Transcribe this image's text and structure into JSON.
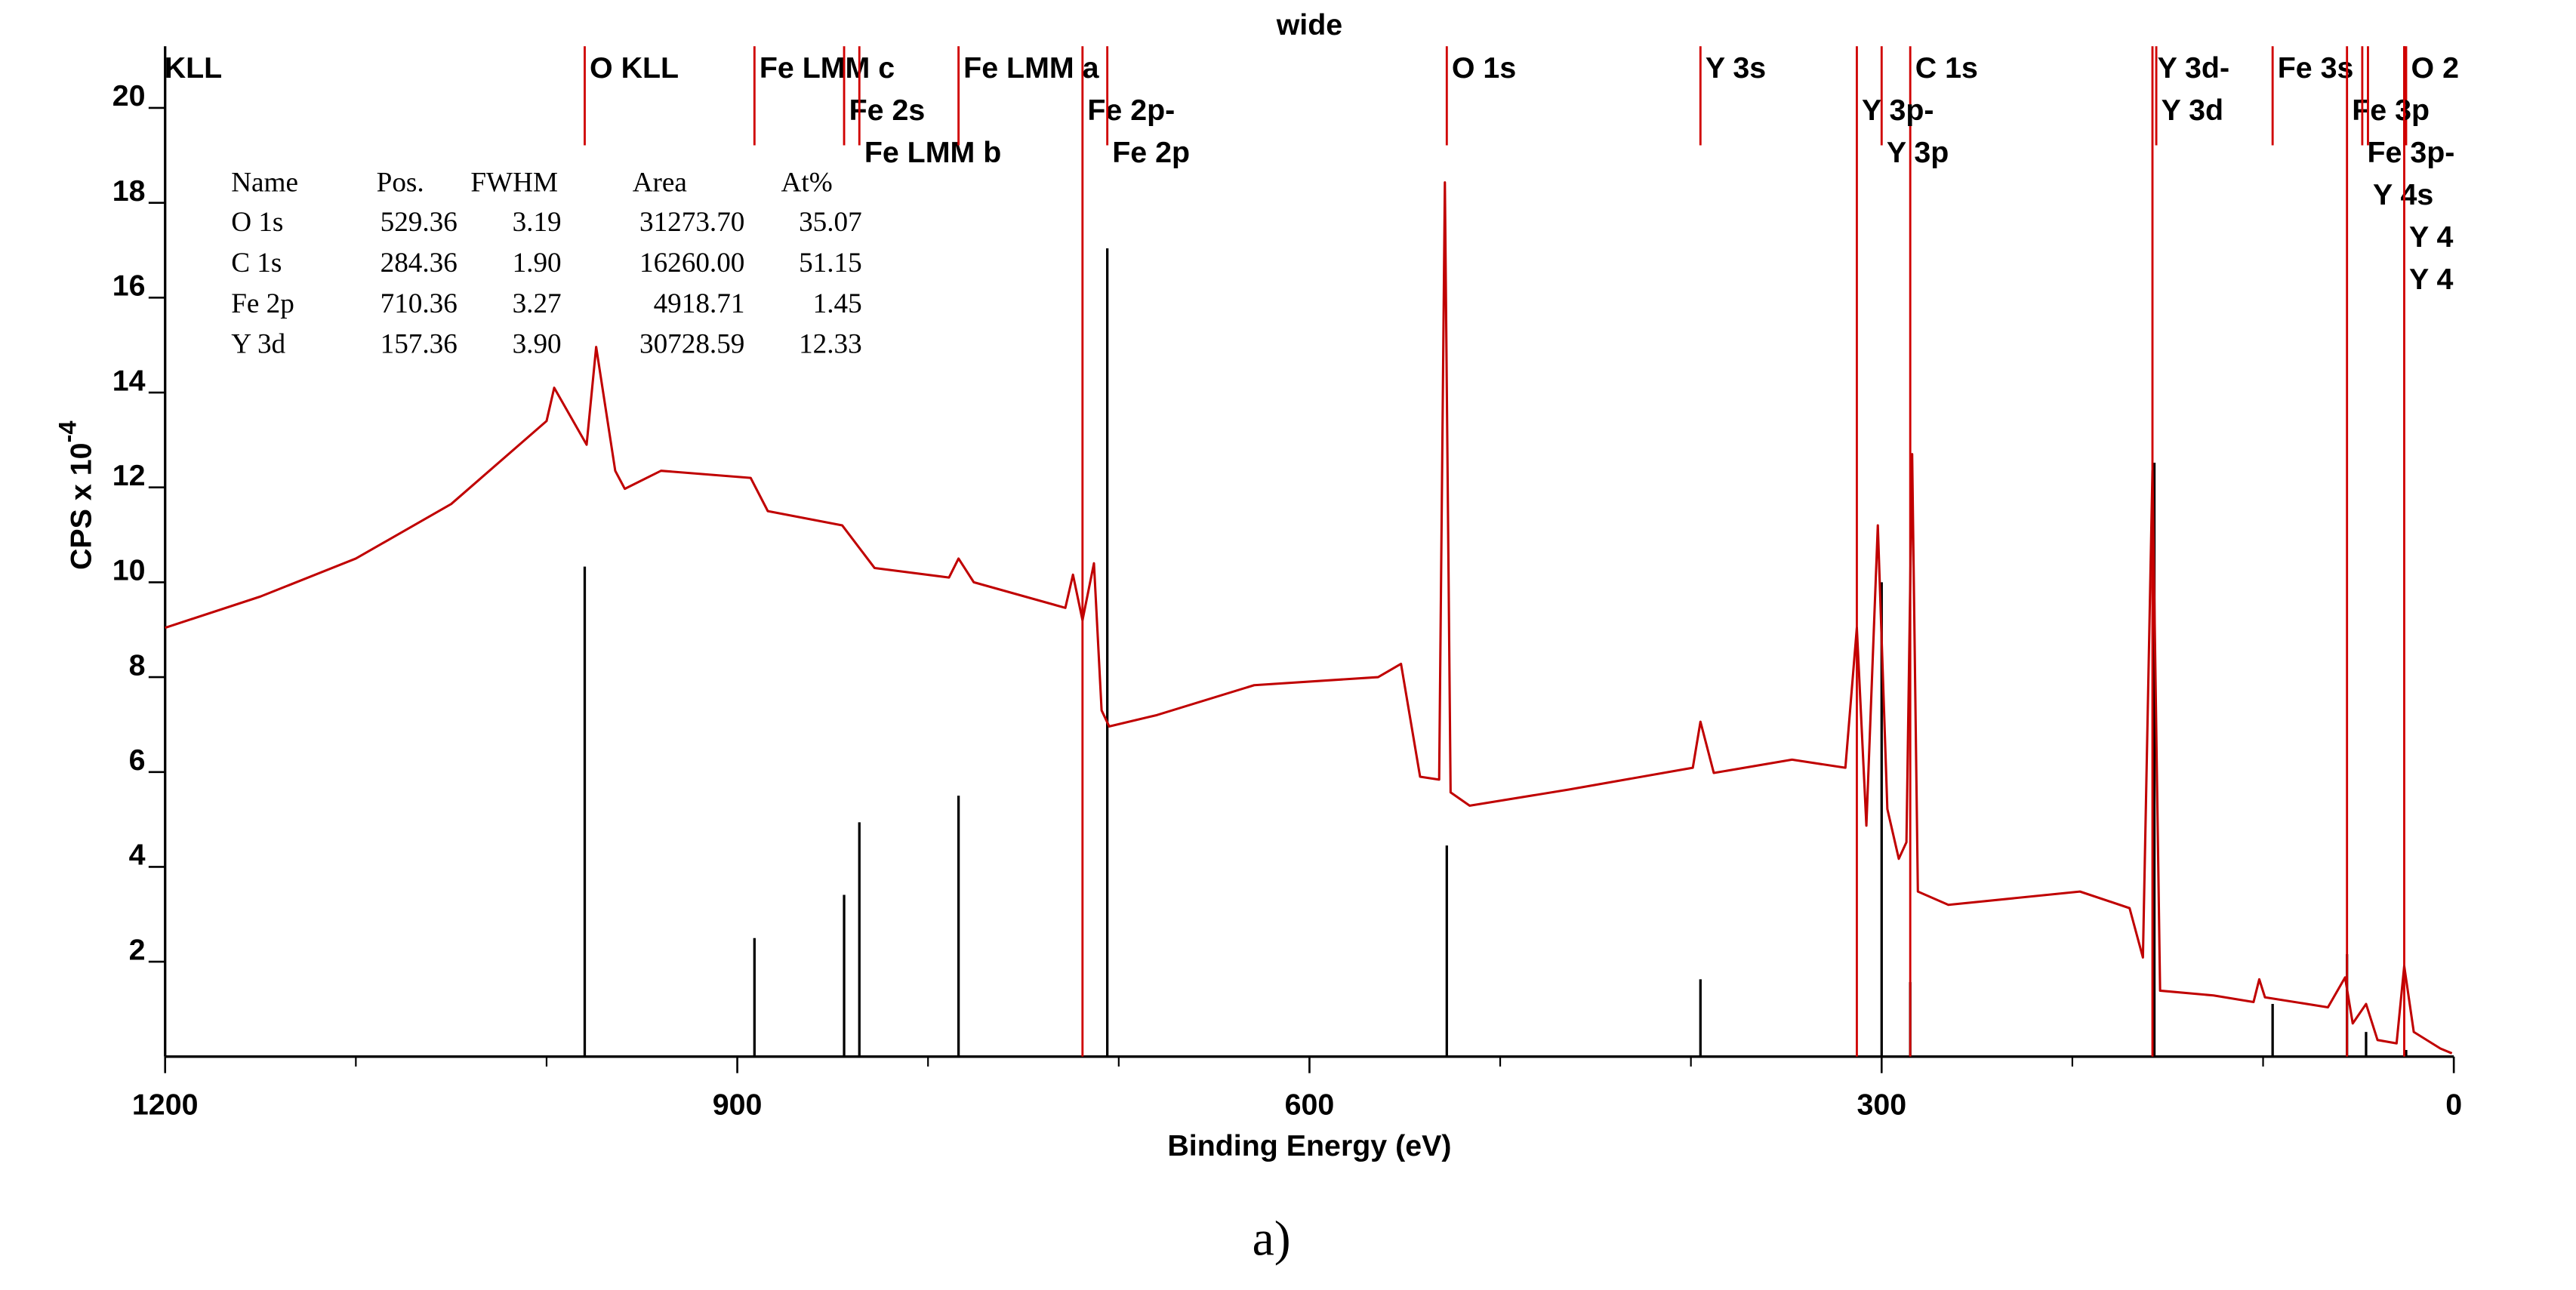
{
  "chart_data": {
    "type": "line",
    "title": "wide",
    "xlabel": "Binding Energy (eV)",
    "ylabel": "CPS x 10",
    "ylabel_exponent": "-4",
    "caption": "a)",
    "xlim": [
      1200,
      0
    ],
    "ylim": [
      0,
      21.3
    ],
    "xticks": [
      1200,
      900,
      600,
      300,
      0
    ],
    "xminor_ticks": [
      1100,
      1000,
      800,
      700,
      500,
      400,
      200,
      100
    ],
    "yticks": [
      2,
      4,
      6,
      8,
      10,
      12,
      14,
      16,
      18,
      20
    ],
    "x": [
      1200,
      1150,
      1100,
      1050,
      1000,
      996,
      979,
      974,
      964,
      959,
      940,
      893,
      884,
      845,
      828,
      789,
      784,
      776,
      728,
      724,
      719,
      713,
      709,
      705,
      680,
      629,
      564,
      552,
      542,
      532,
      529,
      526,
      516,
      464,
      399,
      395,
      388,
      347,
      319,
      313,
      308,
      302,
      297,
      291,
      287,
      284,
      281,
      265,
      196,
      170,
      163,
      158,
      154,
      126,
      105,
      102,
      99,
      66,
      57,
      53,
      46,
      40,
      30,
      26,
      21,
      7,
      1
    ],
    "series": [
      {
        "color": "#c00000",
        "values": [
          9.04,
          9.7,
          10.5,
          11.65,
          13.4,
          14.1,
          12.9,
          14.96,
          12.35,
          11.97,
          12.35,
          12.2,
          11.5,
          11.2,
          10.3,
          10.1,
          10.5,
          10.0,
          9.46,
          10.16,
          9.2,
          10.4,
          7.3,
          6.96,
          7.2,
          7.83,
          8.0,
          8.28,
          5.9,
          5.84,
          18.43,
          5.57,
          5.29,
          5.63,
          6.09,
          7.06,
          5.98,
          6.26,
          6.09,
          9.04,
          4.87,
          11.2,
          5.22,
          4.17,
          4.52,
          12.7,
          3.48,
          3.2,
          3.48,
          3.13,
          2.09,
          12.35,
          1.39,
          1.29,
          1.15,
          1.63,
          1.25,
          1.04,
          1.67,
          0.7,
          1.11,
          0.35,
          0.28,
          1.91,
          0.52,
          0.17,
          0.07
        ]
      }
    ],
    "sticks": {
      "color": "#000000",
      "x": [
        980,
        891,
        844,
        836,
        784,
        706,
        528,
        395,
        300,
        285,
        157,
        95,
        56,
        46,
        25
      ],
      "values": [
        10.33,
        2.5,
        3.41,
        4.94,
        5.5,
        17.04,
        4.45,
        1.63,
        10.0,
        1.57,
        12.52,
        1.11,
        2.16,
        0.52,
        0.14
      ]
    },
    "marker_color": "#d00000",
    "markers": [
      {
        "label": "KLL",
        "x": 1203,
        "to_axis": false
      },
      {
        "label": "O KLL",
        "x": 980,
        "to_axis": false
      },
      {
        "label": "Fe LMM c",
        "x": 891,
        "to_axis": false
      },
      {
        "label": "Fe 2s",
        "x": 844,
        "to_axis": false
      },
      {
        "label": "Fe LMM b",
        "x": 836,
        "to_axis": false
      },
      {
        "label": "Fe LMM a",
        "x": 784,
        "to_axis": false
      },
      {
        "label": "Fe 2p-",
        "x": 719,
        "to_axis": true
      },
      {
        "label": "Fe 2p",
        "x": 706,
        "to_axis": false
      },
      {
        "label": "O 1s",
        "x": 528,
        "to_axis": false
      },
      {
        "label": "Y 3s",
        "x": 395,
        "to_axis": false
      },
      {
        "label": "C 1s",
        "x": 285,
        "to_axis": true
      },
      {
        "label": "Y 3p-",
        "x": 313,
        "to_axis": true
      },
      {
        "label": "Y 3p",
        "x": 300,
        "to_axis": false
      },
      {
        "label": "Y 3d-",
        "x": 158,
        "to_axis": true
      },
      {
        "label": "Y 3d",
        "x": 156,
        "to_axis": false
      },
      {
        "label": "Fe 3s",
        "x": 95,
        "to_axis": false
      },
      {
        "label": "O 2",
        "x": 25,
        "to_axis": false
      },
      {
        "label": "Fe 3p",
        "x": 56,
        "to_axis": true
      },
      {
        "label": "Fe 3p-",
        "x": 48,
        "to_axis": false
      },
      {
        "label": "Y 4s",
        "x": 45,
        "to_axis": false
      },
      {
        "label": "Y 4",
        "x": 26,
        "to_axis": true
      },
      {
        "label": "Y 4",
        "x": 26,
        "to_axis": false
      }
    ],
    "table": {
      "header": [
        "Name",
        "Pos.",
        "FWHM",
        "Area",
        "At%"
      ],
      "rows": [
        [
          "O 1s",
          "529.36",
          "3.19",
          "31273.70",
          "35.07"
        ],
        [
          "C 1s",
          "284.36",
          "1.90",
          "16260.00",
          "51.15"
        ],
        [
          "Fe 2p",
          "710.36",
          "3.27",
          "4918.71",
          "1.45"
        ],
        [
          "Y 3d",
          "157.36",
          "3.90",
          "30728.59",
          "12.33"
        ]
      ]
    }
  }
}
